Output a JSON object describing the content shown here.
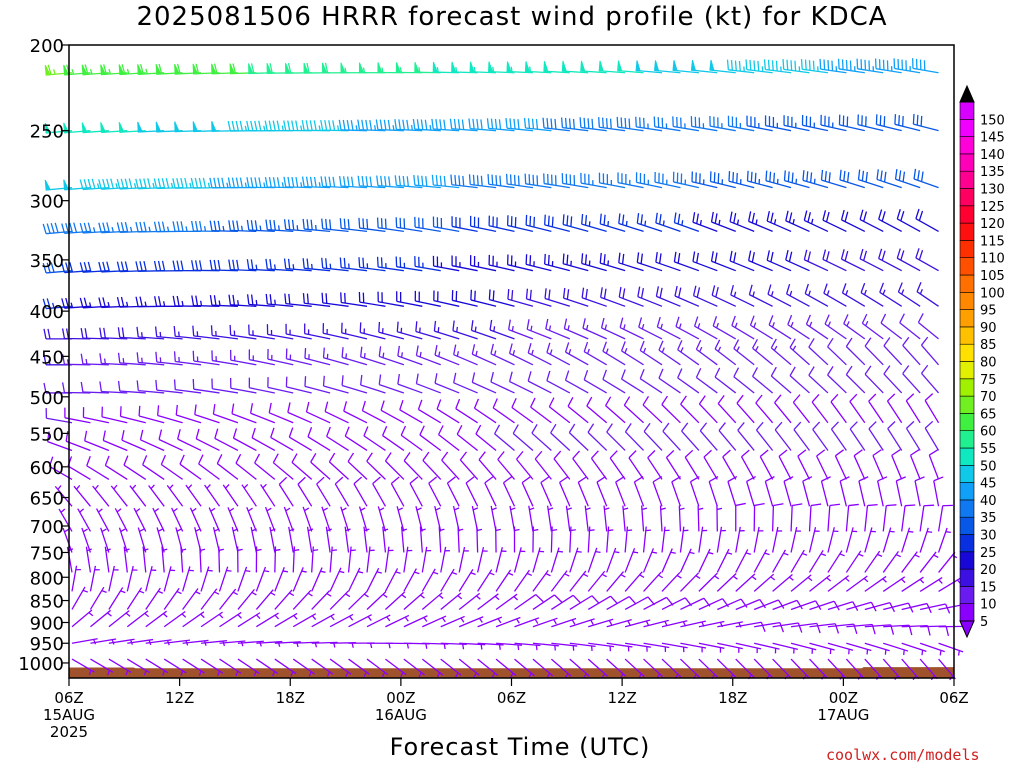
{
  "title": "2025081506 HRRR forecast wind profile (kt) for KDCA",
  "x_axis_label": "Forecast Time (UTC)",
  "credit": "coolwx.com/models",
  "chart_data": {
    "type": "wind_barb_profile",
    "title": "2025081506 HRRR forecast wind profile (kt) for KDCA",
    "xlabel": "Forecast Time (UTC)",
    "ylabel": "",
    "y_scale": "log",
    "y_reversed": true,
    "ylim": [
      200,
      1040
    ],
    "y_ticks": [
      200,
      250,
      300,
      350,
      400,
      450,
      500,
      550,
      600,
      650,
      700,
      750,
      800,
      850,
      900,
      950,
      1000
    ],
    "xlim_hours": [
      0,
      48
    ],
    "x_ticks": [
      {
        "hour": 0,
        "lines": [
          "06Z",
          "15AUG",
          "2025"
        ]
      },
      {
        "hour": 6,
        "lines": [
          "12Z"
        ]
      },
      {
        "hour": 12,
        "lines": [
          "18Z"
        ]
      },
      {
        "hour": 18,
        "lines": [
          "00Z",
          "16AUG"
        ]
      },
      {
        "hour": 24,
        "lines": [
          "06Z"
        ]
      },
      {
        "hour": 30,
        "lines": [
          "12Z"
        ]
      },
      {
        "hour": 36,
        "lines": [
          "18Z"
        ]
      },
      {
        "hour": 42,
        "lines": [
          "00Z",
          "17AUG"
        ]
      },
      {
        "hour": 48,
        "lines": [
          "06Z"
        ]
      }
    ],
    "colorbar": {
      "unit": "kt",
      "levels": [
        5,
        10,
        15,
        20,
        25,
        30,
        35,
        40,
        45,
        50,
        55,
        60,
        65,
        70,
        75,
        80,
        85,
        90,
        95,
        100,
        105,
        110,
        115,
        120,
        125,
        130,
        135,
        140,
        145,
        150
      ],
      "colors": [
        "#8a00ff",
        "#6a1cf0",
        "#3c10e0",
        "#1808d8",
        "#0830e0",
        "#0858e8",
        "#1078f0",
        "#10a0f8",
        "#10c8e8",
        "#10e8c0",
        "#20f090",
        "#40f040",
        "#70f020",
        "#a0f000",
        "#e0f000",
        "#ffe000",
        "#ffc000",
        "#ffa000",
        "#ff8800",
        "#ff7000",
        "#ff5000",
        "#ff3000",
        "#ff1010",
        "#ff0030",
        "#ff0060",
        "#ff0090",
        "#ff00b8",
        "#ff00d8",
        "#f000ff",
        "#d800ff"
      ]
    },
    "terrain_color": "#a0522d",
    "surface_pressure": [
      {
        "hour": 0,
        "hpa": 1012
      },
      {
        "hour": 3.5,
        "hpa": 1012
      },
      {
        "hour": 3.6,
        "hpa": 1014
      },
      {
        "hour": 43,
        "hpa": 1014
      },
      {
        "hour": 43.1,
        "hpa": 1011
      },
      {
        "hour": 48,
        "hpa": 1011
      }
    ],
    "wind_profile": [
      {
        "hpa": 215,
        "times": [
          0,
          48
        ],
        "speed": [
          65,
          42
        ],
        "dir": [
          265,
          280
        ]
      },
      {
        "hpa": 250,
        "times": [
          0,
          48
        ],
        "speed": [
          52,
          30
        ],
        "dir": [
          265,
          285
        ]
      },
      {
        "hpa": 290,
        "times": [
          0,
          48
        ],
        "speed": [
          48,
          30
        ],
        "dir": [
          265,
          290
        ]
      },
      {
        "hpa": 325,
        "times": [
          0,
          48
        ],
        "speed": [
          38,
          20
        ],
        "dir": [
          265,
          300
        ]
      },
      {
        "hpa": 360,
        "times": [
          0,
          48
        ],
        "speed": [
          30,
          18
        ],
        "dir": [
          265,
          300
        ]
      },
      {
        "hpa": 395,
        "times": [
          0,
          48
        ],
        "speed": [
          25,
          15
        ],
        "dir": [
          265,
          305
        ]
      },
      {
        "hpa": 430,
        "times": [
          0,
          48
        ],
        "speed": [
          18,
          12
        ],
        "dir": [
          270,
          310
        ]
      },
      {
        "hpa": 460,
        "times": [
          0,
          48
        ],
        "speed": [
          15,
          12
        ],
        "dir": [
          270,
          320
        ]
      },
      {
        "hpa": 495,
        "times": [
          0,
          48
        ],
        "speed": [
          12,
          10
        ],
        "dir": [
          270,
          320
        ]
      },
      {
        "hpa": 535,
        "times": [
          0,
          48
        ],
        "speed": [
          10,
          8
        ],
        "dir": [
          280,
          330
        ]
      },
      {
        "hpa": 575,
        "times": [
          0,
          48
        ],
        "speed": [
          8,
          12
        ],
        "dir": [
          290,
          330
        ]
      },
      {
        "hpa": 620,
        "times": [
          0,
          48
        ],
        "speed": [
          8,
          10
        ],
        "dir": [
          300,
          340
        ]
      },
      {
        "hpa": 665,
        "times": [
          0,
          48
        ],
        "speed": [
          7,
          9
        ],
        "dir": [
          320,
          350
        ]
      },
      {
        "hpa": 710,
        "times": [
          0,
          48
        ],
        "speed": [
          6,
          8
        ],
        "dir": [
          330,
          10
        ]
      },
      {
        "hpa": 750,
        "times": [
          0,
          48
        ],
        "speed": [
          6,
          7
        ],
        "dir": [
          340,
          20
        ]
      },
      {
        "hpa": 790,
        "times": [
          0,
          48
        ],
        "speed": [
          6,
          6
        ],
        "dir": [
          350,
          40
        ]
      },
      {
        "hpa": 830,
        "times": [
          0,
          48
        ],
        "speed": [
          7,
          7
        ],
        "dir": [
          10,
          60
        ]
      },
      {
        "hpa": 870,
        "times": [
          0,
          48
        ],
        "speed": [
          7,
          8
        ],
        "dir": [
          30,
          80
        ]
      },
      {
        "hpa": 910,
        "times": [
          0,
          48
        ],
        "speed": [
          6,
          8
        ],
        "dir": [
          50,
          90
        ]
      },
      {
        "hpa": 950,
        "times": [
          0,
          48
        ],
        "speed": [
          5,
          7
        ],
        "dir": [
          80,
          110
        ]
      },
      {
        "hpa": 990,
        "times": [
          0,
          48
        ],
        "speed": [
          5,
          6
        ],
        "dir": [
          120,
          140
        ]
      }
    ]
  }
}
